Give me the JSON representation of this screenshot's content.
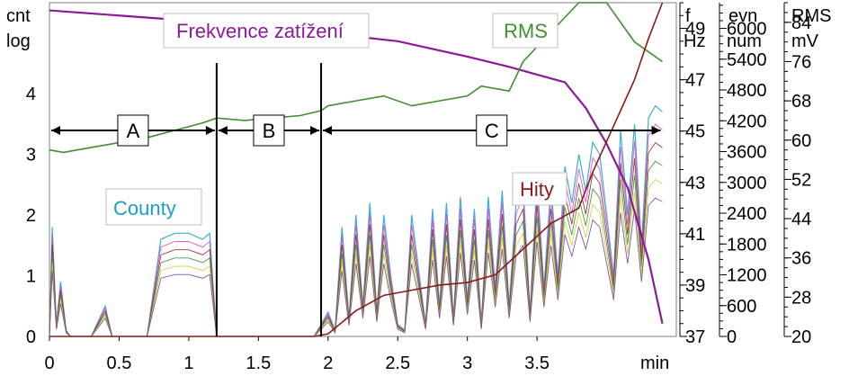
{
  "colors": {
    "frequency": "#8b1a9b",
    "rms": "#3f8f2f",
    "hits": "#8b1a1a",
    "counts": "#1aa0c8",
    "box_border": "#bfbfbf"
  },
  "chart_data": {
    "type": "line",
    "xlabel": "min",
    "x_ticks": [
      "0",
      "0.5",
      "1",
      "1.5",
      "2",
      "2.5",
      "3",
      "3.5"
    ],
    "xlim": [
      0,
      4.5
    ],
    "axes": {
      "counts": {
        "label_top": "cnt",
        "label_bottom": "log",
        "ticks": [
          "0",
          "1",
          "2",
          "3",
          "4"
        ],
        "range": [
          0,
          5.5
        ]
      },
      "frequency": {
        "label_top": "f",
        "label_bottom": "Hz",
        "ticks": [
          "37",
          "39",
          "41",
          "43",
          "45",
          "47",
          "49"
        ],
        "range": [
          37,
          50
        ]
      },
      "events": {
        "label_top": "evn",
        "label_bottom": "num",
        "ticks": [
          "0",
          "600",
          "1200",
          "1800",
          "2400",
          "3000",
          "3600",
          "4200",
          "4800",
          "5400",
          "6000"
        ],
        "range": [
          0,
          6500
        ]
      },
      "rms": {
        "label_top": "RMS",
        "label_bottom": "mV",
        "ticks": [
          "20",
          "28",
          "36",
          "44",
          "52",
          "60",
          "68",
          "76",
          "84"
        ],
        "range": [
          20,
          88
        ]
      }
    },
    "phases": [
      {
        "label": "A",
        "start": 0,
        "end": 1.2
      },
      {
        "label": "B",
        "start": 1.2,
        "end": 1.95
      },
      {
        "label": "C",
        "start": 1.95,
        "end": 4.4
      }
    ],
    "series": [
      {
        "name": "Frekvence zatížení",
        "axis": "frequency",
        "x": [
          0,
          0.5,
          1.0,
          1.5,
          2.0,
          2.5,
          3.0,
          3.3,
          3.5,
          3.7,
          3.85,
          4.0,
          4.15,
          4.3,
          4.4
        ],
        "y": [
          49.7,
          49.5,
          49.3,
          49.1,
          48.8,
          48.5,
          47.9,
          47.5,
          47.2,
          46.9,
          45.9,
          44.5,
          42.8,
          40.0,
          37.5
        ]
      },
      {
        "name": "RMS",
        "axis": "rms",
        "x": [
          0,
          0.1,
          0.3,
          0.5,
          0.7,
          0.9,
          1.1,
          1.2,
          1.4,
          1.6,
          1.8,
          1.95,
          2.0,
          2.2,
          2.4,
          2.6,
          2.8,
          3.0,
          3.1,
          3.3,
          3.4,
          3.5,
          3.6,
          3.7,
          3.8,
          3.9,
          4.0,
          4.1,
          4.2,
          4.3,
          4.4
        ],
        "y": [
          58,
          57.5,
          58.5,
          59.5,
          60.5,
          62,
          63.5,
          64.5,
          64,
          64.5,
          65,
          66,
          67,
          68,
          69,
          67,
          68,
          69,
          71,
          70,
          76,
          79,
          82,
          85,
          88,
          88,
          88,
          84,
          80,
          78,
          76
        ]
      },
      {
        "name": "Hity",
        "axis": "events",
        "x": [
          0,
          1.0,
          1.5,
          1.9,
          2.0,
          2.2,
          2.4,
          2.6,
          2.8,
          3.0,
          3.2,
          3.4,
          3.6,
          3.8,
          3.9,
          4.0,
          4.1,
          4.2,
          4.3,
          4.4
        ],
        "y": [
          0,
          0,
          0,
          0,
          50,
          500,
          800,
          900,
          1000,
          1050,
          1200,
          1700,
          2200,
          2500,
          3200,
          3800,
          4400,
          5000,
          5800,
          6500
        ]
      },
      {
        "name": "County",
        "axis": "counts",
        "x": [
          0,
          0.02,
          0.05,
          0.08,
          0.12,
          0.15,
          0.3,
          0.4,
          0.45,
          0.7,
          0.8,
          0.9,
          1.0,
          1.1,
          1.15,
          1.2,
          1.9,
          1.95,
          2.0,
          2.05,
          2.1,
          2.15,
          2.2,
          2.25,
          2.3,
          2.35,
          2.4,
          2.45,
          2.5,
          2.55,
          2.6,
          2.7,
          2.75,
          2.8,
          2.85,
          2.9,
          2.95,
          3.0,
          3.05,
          3.1,
          3.15,
          3.2,
          3.25,
          3.3,
          3.35,
          3.4,
          3.45,
          3.5,
          3.55,
          3.6,
          3.65,
          3.7,
          3.75,
          3.8,
          3.85,
          3.9,
          3.95,
          4.0,
          4.05,
          4.1,
          4.15,
          4.2,
          4.25,
          4.3,
          4.35,
          4.4
        ],
        "y": [
          0,
          1.8,
          0.2,
          0.9,
          0.1,
          0,
          0,
          0.5,
          0,
          0,
          1.6,
          1.7,
          1.7,
          1.6,
          1.7,
          0,
          0,
          0.2,
          0.4,
          0.1,
          1.8,
          0.3,
          2.0,
          0.5,
          2.2,
          0.4,
          2.0,
          1.0,
          0.2,
          0.1,
          2.0,
          0.2,
          2.1,
          0.5,
          2.2,
          0.3,
          2.3,
          0.6,
          2.1,
          0.2,
          2.3,
          0.8,
          2.4,
          0.5,
          2.2,
          2.5,
          0.4,
          2.6,
          0.8,
          2.5,
          1.0,
          2.8,
          2.2,
          3.0,
          2.4,
          3.2,
          3.0,
          2.0,
          1.0,
          3.4,
          2.0,
          3.5,
          1.5,
          3.6,
          3.8,
          3.7
        ]
      }
    ]
  }
}
